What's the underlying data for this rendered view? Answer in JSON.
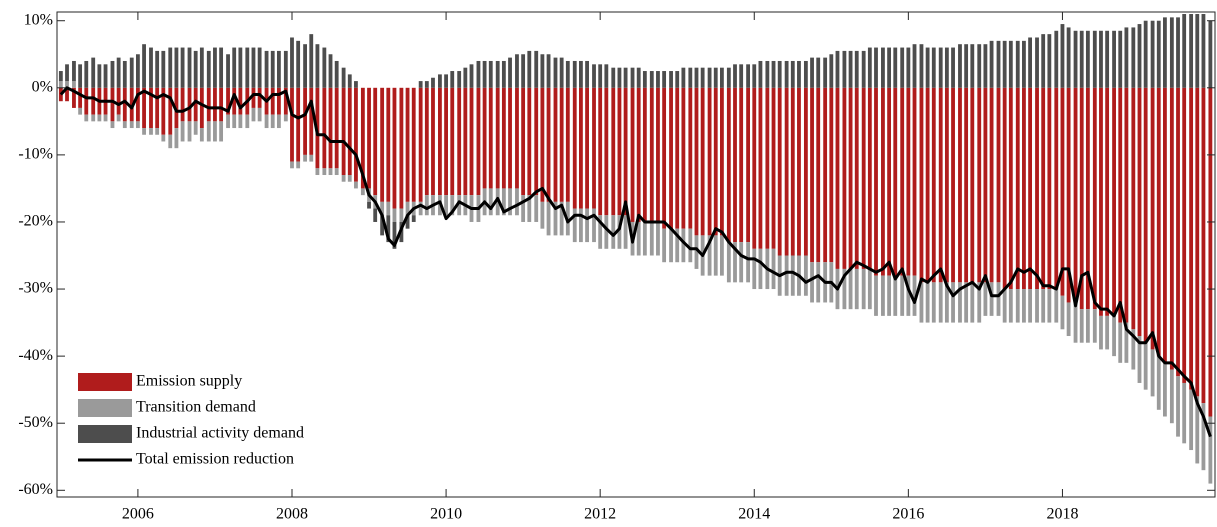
{
  "chart_data": {
    "type": "stacked-bar-line",
    "x": [
      2005,
      2005.08,
      2005.17,
      2005.25,
      2005.33,
      2005.42,
      2005.5,
      2005.58,
      2005.67,
      2005.75,
      2005.83,
      2005.92,
      2006,
      2006.08,
      2006.17,
      2006.25,
      2006.33,
      2006.42,
      2006.5,
      2006.58,
      2006.67,
      2006.75,
      2006.83,
      2006.92,
      2007,
      2007.08,
      2007.17,
      2007.25,
      2007.33,
      2007.42,
      2007.5,
      2007.58,
      2007.67,
      2007.75,
      2007.83,
      2007.92,
      2008,
      2008.08,
      2008.17,
      2008.25,
      2008.33,
      2008.42,
      2008.5,
      2008.58,
      2008.67,
      2008.75,
      2008.83,
      2008.92,
      2009,
      2009.08,
      2009.17,
      2009.25,
      2009.33,
      2009.42,
      2009.5,
      2009.58,
      2009.67,
      2009.75,
      2009.83,
      2009.92,
      2010,
      2010.08,
      2010.17,
      2010.25,
      2010.33,
      2010.42,
      2010.5,
      2010.58,
      2010.67,
      2010.75,
      2010.83,
      2010.92,
      2011,
      2011.08,
      2011.17,
      2011.25,
      2011.33,
      2011.42,
      2011.5,
      2011.58,
      2011.67,
      2011.75,
      2011.83,
      2011.92,
      2012,
      2012.08,
      2012.17,
      2012.25,
      2012.33,
      2012.42,
      2012.5,
      2012.58,
      2012.67,
      2012.75,
      2012.83,
      2012.92,
      2013,
      2013.08,
      2013.17,
      2013.25,
      2013.33,
      2013.42,
      2013.5,
      2013.58,
      2013.67,
      2013.75,
      2013.83,
      2013.92,
      2014,
      2014.08,
      2014.17,
      2014.25,
      2014.33,
      2014.42,
      2014.5,
      2014.58,
      2014.67,
      2014.75,
      2014.83,
      2014.92,
      2015,
      2015.08,
      2015.17,
      2015.25,
      2015.33,
      2015.42,
      2015.5,
      2015.58,
      2015.67,
      2015.75,
      2015.83,
      2015.92,
      2016,
      2016.08,
      2016.17,
      2016.25,
      2016.33,
      2016.42,
      2016.5,
      2016.58,
      2016.67,
      2016.75,
      2016.83,
      2016.92,
      2017,
      2017.08,
      2017.17,
      2017.25,
      2017.33,
      2017.42,
      2017.5,
      2017.58,
      2017.67,
      2017.75,
      2017.83,
      2017.92,
      2018,
      2018.08,
      2018.17,
      2018.25,
      2018.33,
      2018.42,
      2018.5,
      2018.58,
      2018.67,
      2018.75,
      2018.83,
      2018.92,
      2019,
      2019.08,
      2019.17,
      2019.25,
      2019.33,
      2019.42,
      2019.5,
      2019.58,
      2019.67,
      2019.75,
      2019.83,
      2019.92
    ],
    "series": [
      {
        "name": "Emission supply",
        "color": "#b01c1c",
        "kind": "bar",
        "values": [
          -2,
          -2,
          -3,
          -3,
          -4,
          -4,
          -4,
          -4,
          -5,
          -4,
          -5,
          -5,
          -5,
          -6,
          -6,
          -6,
          -7,
          -7,
          -6,
          -5,
          -5,
          -5,
          -6,
          -5,
          -5,
          -5,
          -4,
          -4,
          -4,
          -4,
          -3,
          -3,
          -4,
          -4,
          -4,
          -4,
          -11,
          -11,
          -10,
          -10,
          -12,
          -12,
          -12,
          -12,
          -13,
          -13,
          -14,
          -15,
          -15,
          -16,
          -17,
          -17,
          -18,
          -18,
          -17,
          -17,
          -17,
          -16,
          -16,
          -16,
          -16,
          -16,
          -16,
          -16,
          -16,
          -16,
          -15,
          -15,
          -15,
          -15,
          -15,
          -15,
          -16,
          -16,
          -16,
          -17,
          -17,
          -17,
          -17,
          -17,
          -18,
          -18,
          -18,
          -18,
          -19,
          -19,
          -19,
          -19,
          -19,
          -20,
          -20,
          -20,
          -20,
          -20,
          -21,
          -21,
          -21,
          -21,
          -21,
          -22,
          -22,
          -22,
          -22,
          -22,
          -23,
          -23,
          -23,
          -23,
          -24,
          -24,
          -24,
          -24,
          -25,
          -25,
          -25,
          -25,
          -25,
          -26,
          -26,
          -26,
          -26,
          -27,
          -27,
          -27,
          -27,
          -27,
          -27,
          -28,
          -28,
          -28,
          -28,
          -28,
          -28,
          -28,
          -29,
          -29,
          -29,
          -29,
          -29,
          -29,
          -29,
          -29,
          -29,
          -29,
          -29,
          -29,
          -29,
          -30,
          -30,
          -30,
          -30,
          -30,
          -30,
          -30,
          -30,
          -30,
          -31,
          -32,
          -32,
          -33,
          -33,
          -33,
          -34,
          -34,
          -34,
          -35,
          -35,
          -36,
          -37,
          -38,
          -39,
          -40,
          -41,
          -42,
          -43,
          -44,
          -45,
          -46,
          -47,
          -49
        ]
      },
      {
        "name": "Transition demand",
        "color": "#9a9a9a",
        "kind": "bar",
        "values": [
          1,
          1,
          1,
          -1,
          -1,
          -1,
          -1,
          -1,
          -1,
          -1,
          -1,
          -1,
          -1,
          -1,
          -1,
          -1,
          -1,
          -2,
          -3,
          -3,
          -3,
          -2,
          -2,
          -3,
          -3,
          -3,
          -2,
          -2,
          -2,
          -2,
          -2,
          -2,
          -2,
          -2,
          -2,
          -1,
          -1,
          -1,
          -1,
          -1,
          -1,
          -1,
          -1,
          -1,
          -1,
          -1,
          -1,
          -1,
          -2,
          -2,
          -2,
          -2,
          -2,
          -2,
          -2,
          -2,
          -2,
          -3,
          -3,
          -3,
          -3,
          -3,
          -3,
          -3,
          -4,
          -4,
          -4,
          -4,
          -4,
          -4,
          -4,
          -4,
          -4,
          -4,
          -4,
          -4,
          -5,
          -5,
          -5,
          -5,
          -5,
          -5,
          -5,
          -5,
          -5,
          -5,
          -5,
          -5,
          -5,
          -5,
          -5,
          -5,
          -5,
          -5,
          -5,
          -5,
          -5,
          -5,
          -5,
          -5,
          -6,
          -6,
          -6,
          -6,
          -6,
          -6,
          -6,
          -6,
          -6,
          -6,
          -6,
          -6,
          -6,
          -6,
          -6,
          -6,
          -6,
          -6,
          -6,
          -6,
          -6,
          -6,
          -6,
          -6,
          -6,
          -6,
          -6,
          -6,
          -6,
          -6,
          -6,
          -6,
          -6,
          -6,
          -6,
          -6,
          -6,
          -6,
          -6,
          -6,
          -6,
          -6,
          -6,
          -6,
          -5,
          -5,
          -5,
          -5,
          -5,
          -5,
          -5,
          -5,
          -5,
          -5,
          -5,
          -5,
          -5,
          -5,
          -6,
          -5,
          -5,
          -5,
          -5,
          -5,
          -6,
          -6,
          -6,
          -6,
          -7,
          -7,
          -7,
          -8,
          -8,
          -8,
          -9,
          -9,
          -9,
          -10,
          -10,
          -10
        ]
      },
      {
        "name": "Industrial activity demand",
        "color": "#4d4d4d",
        "kind": "bar",
        "values": [
          1.5,
          2.5,
          3,
          3.5,
          4,
          4.5,
          3.5,
          3.5,
          4,
          4.5,
          4,
          4.5,
          5,
          6.5,
          6,
          5.5,
          5.5,
          6,
          6,
          6,
          6,
          5.5,
          6,
          5.5,
          6,
          6,
          5,
          6,
          6,
          6,
          6,
          6,
          5.5,
          5.5,
          5.5,
          5.5,
          7.5,
          7,
          6.5,
          8,
          6.5,
          6,
          5,
          4,
          3,
          2,
          1,
          0,
          -1,
          -2,
          -3,
          -4,
          -4,
          -3,
          -2,
          -1,
          1,
          1,
          1.5,
          2,
          2,
          2.5,
          2.5,
          3,
          3.5,
          4,
          4,
          4,
          4,
          4,
          4.5,
          5,
          5,
          5.5,
          5.5,
          5,
          5,
          4.5,
          4.5,
          4,
          4,
          4,
          4,
          3.5,
          3.5,
          3.5,
          3,
          3,
          3,
          3,
          3,
          2.5,
          2.5,
          2.5,
          2.5,
          2.5,
          2.5,
          3,
          3,
          3,
          3,
          3,
          3,
          3,
          3,
          3.5,
          3.5,
          3.5,
          3.5,
          4,
          4,
          4,
          4,
          4,
          4,
          4,
          4,
          4.5,
          4.5,
          4.5,
          5,
          5.5,
          5.5,
          5.5,
          5.5,
          5.5,
          6,
          6,
          6,
          6,
          6,
          6,
          6,
          6.5,
          6.5,
          6,
          6,
          6,
          6,
          6,
          6.5,
          6.5,
          6.5,
          6.5,
          6.5,
          7,
          7,
          7,
          7,
          7,
          7,
          7.5,
          7.5,
          8,
          8,
          8.5,
          9.5,
          9,
          8.5,
          8.5,
          8.5,
          8.5,
          8.5,
          8.5,
          8.5,
          8.5,
          9,
          9,
          9.5,
          10,
          10,
          10,
          10.5,
          10.5,
          10.5,
          11,
          11,
          11,
          11,
          10
        ]
      },
      {
        "name": "Total emission reduction",
        "color": "#000000",
        "kind": "line",
        "values": [
          -1,
          0,
          -0.5,
          -1,
          -1.5,
          -1.5,
          -2,
          -2,
          -2,
          -2.5,
          -2,
          -3,
          -1,
          -0.5,
          -1,
          -1.5,
          -1,
          -1.5,
          -3.5,
          -3.5,
          -3,
          -2,
          -2.5,
          -3,
          -3,
          -3,
          -3.5,
          -1,
          -3,
          -2,
          -1,
          -1,
          -2,
          -1,
          -1,
          -0.5,
          -4,
          -4.5,
          -4,
          -2,
          -7,
          -7,
          -8,
          -8,
          -8,
          -9,
          -10,
          -13,
          -16,
          -17,
          -19,
          -22.5,
          -23.5,
          -21,
          -19,
          -18,
          -17.5,
          -18,
          -17.5,
          -17,
          -19.5,
          -18.5,
          -17,
          -17.5,
          -18,
          -18,
          -17,
          -18,
          -16.5,
          -18.5,
          -18,
          -17.5,
          -17,
          -16.5,
          -15.5,
          -15,
          -16.5,
          -18,
          -17.5,
          -20,
          -19,
          -19,
          -19.5,
          -19,
          -20,
          -21,
          -22,
          -21,
          -17,
          -23,
          -19,
          -20,
          -20,
          -20,
          -20,
          -21,
          -22,
          -23,
          -24,
          -24,
          -25,
          -23,
          -21,
          -21.5,
          -23,
          -24,
          -25,
          -25.5,
          -25.5,
          -26,
          -27,
          -27.5,
          -28,
          -27.5,
          -27.5,
          -28,
          -29,
          -28.5,
          -28,
          -29,
          -29,
          -30,
          -28,
          -27,
          -26,
          -26.5,
          -27,
          -27.5,
          -27,
          -26,
          -28.5,
          -27,
          -30,
          -32,
          -28.5,
          -29,
          -28,
          -27,
          -29.5,
          -31,
          -30,
          -29.5,
          -29,
          -30,
          -28,
          -31,
          -31,
          -30,
          -29,
          -27,
          -27.5,
          -27,
          -28,
          -29.5,
          -29.5,
          -30,
          -27,
          -27,
          -32.5,
          -28,
          -27.5,
          -32,
          -33,
          -33,
          -34,
          -32,
          -36,
          -37,
          -38,
          -38,
          -36.5,
          -40,
          -41,
          -41,
          -42,
          -43,
          -44,
          -47,
          -49,
          -52
        ]
      }
    ],
    "xlim": [
      2004.95,
      2019.98
    ],
    "xticks": [
      2006,
      2008,
      2010,
      2012,
      2014,
      2016,
      2018
    ],
    "ylim": [
      -61,
      11.3
    ],
    "yticks": [
      {
        "value": -60,
        "label": "-60%"
      },
      {
        "value": -50,
        "label": "-50%"
      },
      {
        "value": -40,
        "label": "-40%"
      },
      {
        "value": -30,
        "label": "-30%"
      },
      {
        "value": -20,
        "label": "-20%"
      },
      {
        "value": -10,
        "label": "-10%"
      },
      {
        "value": 0,
        "label": "0%"
      },
      {
        "value": 10,
        "label": "10%"
      }
    ],
    "legend": "lower left"
  }
}
